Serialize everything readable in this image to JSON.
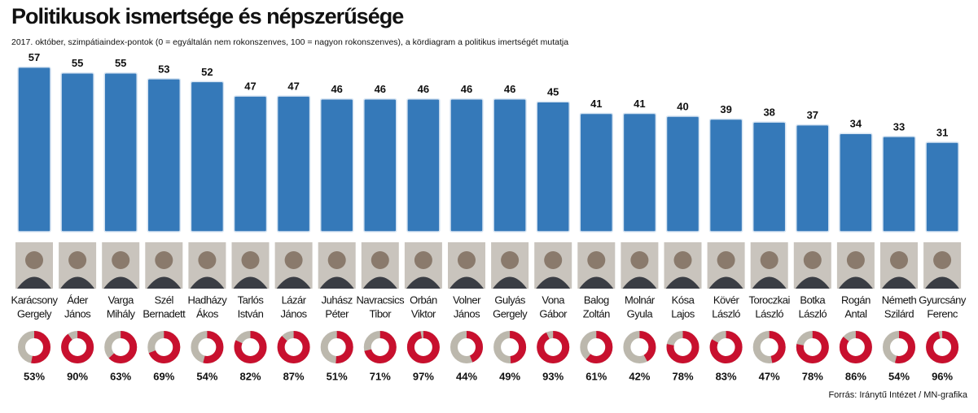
{
  "chart_data": [
    {
      "type": "bar",
      "title": "Politikusok ismertsége és népszerűsége",
      "subtitle": "2017. október, szimpátiaindex-pontok (0 = egyáltalán nem rokonszenves, 100 = nagyon rokonszenves), a kördiagram a politikus imertségét mutatja",
      "categories": [
        [
          "Karácsony",
          "Gergely"
        ],
        [
          "Áder",
          "János"
        ],
        [
          "Varga",
          "Mihály"
        ],
        [
          "Szél",
          "Bernadett"
        ],
        [
          "Hadházy",
          "Ákos"
        ],
        [
          "Tarlós",
          "István"
        ],
        [
          "Lázár",
          "János"
        ],
        [
          "Juhász",
          "Péter"
        ],
        [
          "Navracsics",
          "Tibor"
        ],
        [
          "Orbán",
          "Viktor"
        ],
        [
          "Volner",
          "János"
        ],
        [
          "Gulyás",
          "Gergely"
        ],
        [
          "Vona",
          "Gábor"
        ],
        [
          "Balog",
          "Zoltán"
        ],
        [
          "Molnár",
          "Gyula"
        ],
        [
          "Kósa",
          "Lajos"
        ],
        [
          "Kövér",
          "László"
        ],
        [
          "Toroczkai",
          "László"
        ],
        [
          "Botka",
          "László"
        ],
        [
          "Rogán",
          "Antal"
        ],
        [
          "Németh",
          "Szilárd"
        ],
        [
          "Gyurcsány",
          "Ferenc"
        ]
      ],
      "values": [
        57,
        55,
        55,
        53,
        52,
        47,
        47,
        46,
        46,
        46,
        46,
        46,
        45,
        41,
        41,
        40,
        39,
        38,
        37,
        34,
        33,
        31
      ],
      "color": "#3579b9"
    },
    {
      "type": "donut",
      "values": [
        53,
        90,
        63,
        69,
        54,
        82,
        87,
        51,
        71,
        97,
        44,
        49,
        93,
        61,
        42,
        78,
        83,
        47,
        78,
        86,
        54,
        96
      ],
      "value_labels": [
        "53%",
        "90%",
        "63%",
        "69%",
        "54%",
        "82%",
        "87%",
        "51%",
        "71%",
        "97%",
        "44%",
        "49%",
        "93%",
        "61%",
        "42%",
        "78%",
        "83%",
        "47%",
        "78%",
        "86%",
        "54%",
        "96%"
      ],
      "color": "#c8102e",
      "rest_color": "#bcb8ad"
    }
  ],
  "source": "Forrás: Iránytű Intézet / MN-grafika"
}
